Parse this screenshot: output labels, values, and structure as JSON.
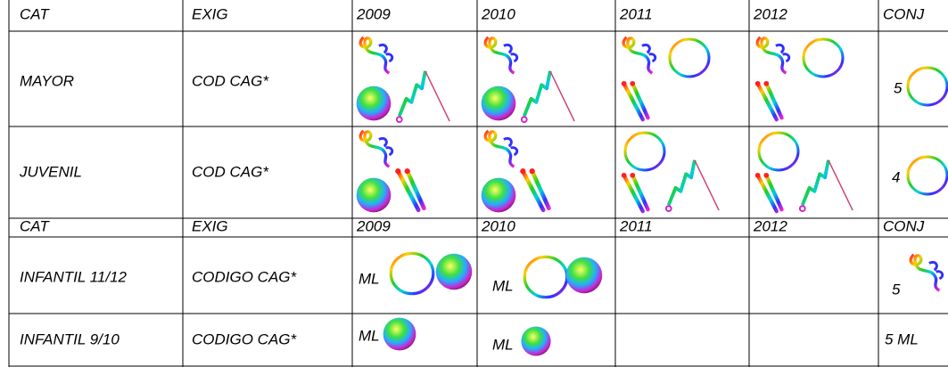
{
  "sections": [
    {
      "header": [
        "CAT",
        "EXIG",
        "2009",
        "2010",
        "2011",
        "2012",
        "CONJ"
      ],
      "rows": [
        {
          "cat": "MAYOR",
          "exig": "COD CAG*",
          "conj": "5"
        },
        {
          "cat": "JUVENIL",
          "exig": "COD CAG*",
          "conj": "4"
        }
      ]
    },
    {
      "header": [
        "CAT",
        "EXIG",
        "2009",
        "2010",
        "2011",
        "2012",
        "CONJ"
      ],
      "rows": [
        {
          "cat": "INFANTIL 11/12",
          "exig": "CODIGO CAG*",
          "y2009": "ML",
          "y2010": "ML",
          "conj": "5"
        },
        {
          "cat": "INFANTIL 9/10",
          "exig": "CODIGO CAG*",
          "y2009": "ML",
          "y2010": "ML",
          "conj": "5 ML"
        }
      ]
    }
  ]
}
